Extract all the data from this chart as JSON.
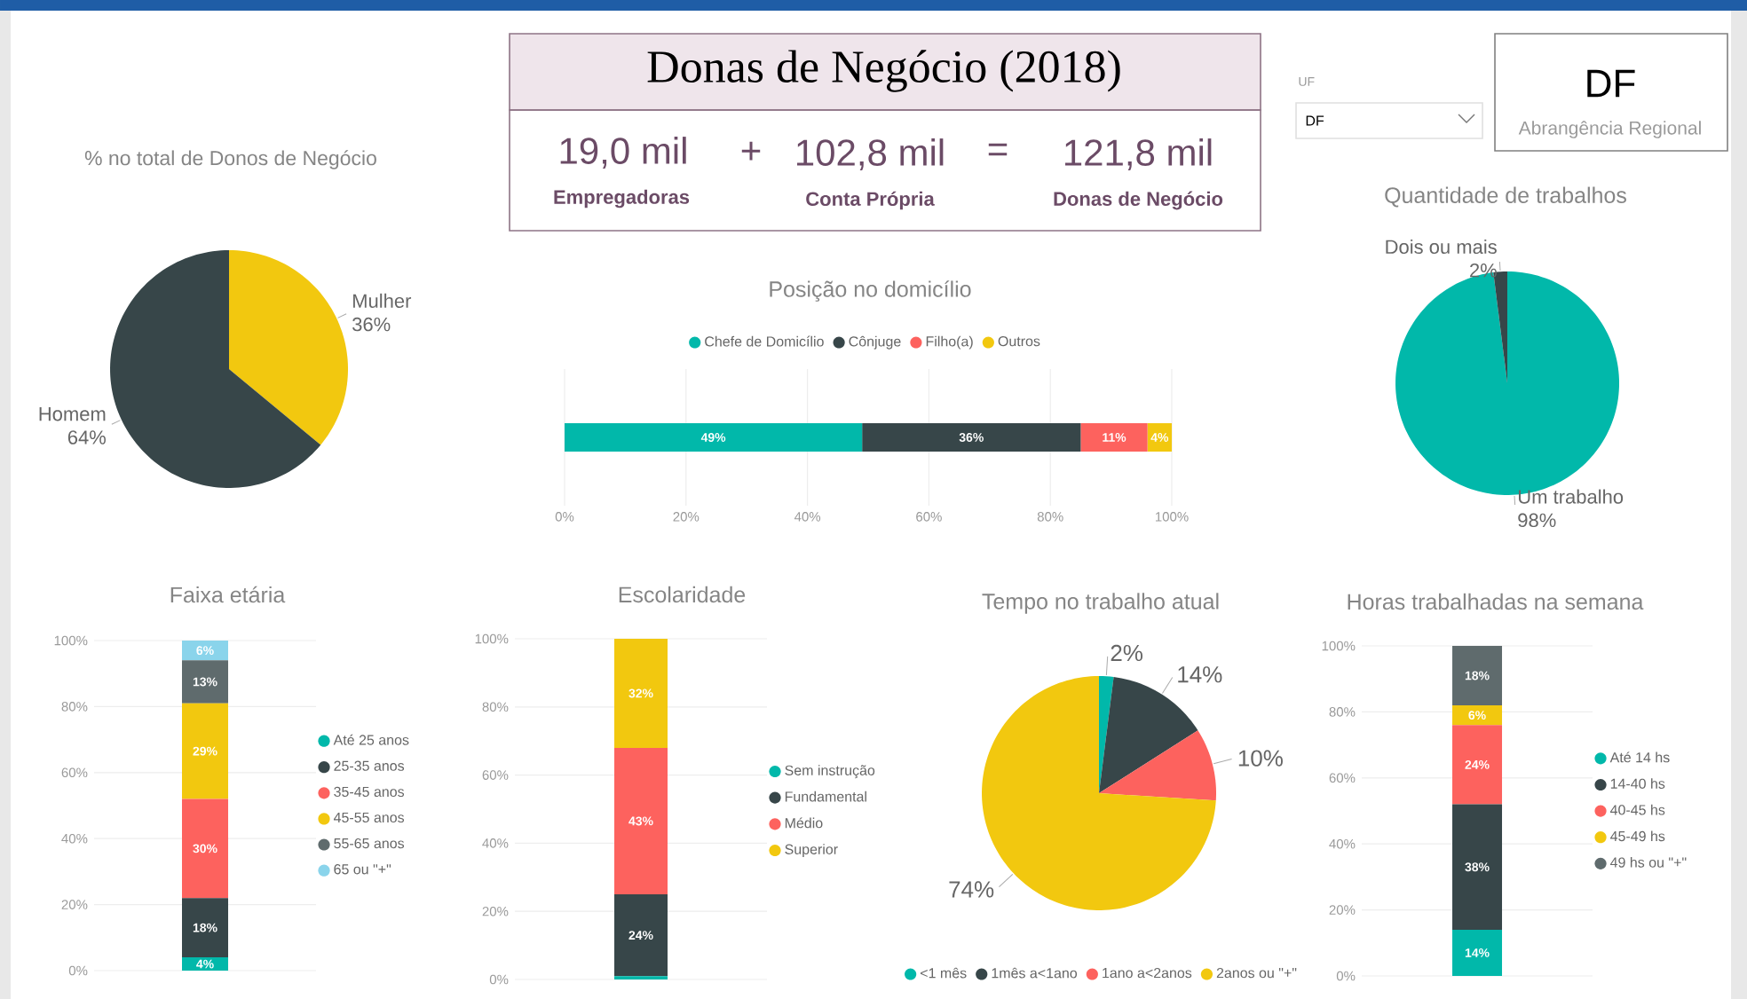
{
  "chart_data": [
    {
      "type": "pie",
      "title": "% no total de Donos de Negócio",
      "categories": [
        "Mulher",
        "Homem"
      ],
      "values": [
        36,
        64
      ],
      "colors": [
        "#f2c80f",
        "#374649"
      ],
      "value_labels": [
        "36%",
        "64%"
      ]
    },
    {
      "type": "other",
      "title": "Donas de Negócio (2018)",
      "annotations": [
        "19,0 mil",
        "+",
        "102,8 mil",
        "=",
        "121,8 mil",
        "Empregadoras",
        "Conta Própria",
        "Donas de Negócio"
      ]
    },
    {
      "type": "other",
      "title": "UF",
      "annotations": [
        "DF"
      ]
    },
    {
      "type": "other",
      "annotations": [
        "DF",
        "Abrangência Regional"
      ]
    },
    {
      "type": "bar",
      "orientation": "horizontal",
      "stacked": true,
      "title": "Posição no domicílio",
      "categories": [
        null
      ],
      "series": [
        {
          "name": "Chefe de Domicílio",
          "color": "#01b8aa",
          "values": [
            49
          ],
          "value_labels": [
            "49%"
          ]
        },
        {
          "name": "Cônjuge",
          "color": "#374649",
          "values": [
            36
          ],
          "value_labels": [
            "36%"
          ]
        },
        {
          "name": "Filho(a)",
          "color": "#fd625e",
          "values": [
            11
          ],
          "value_labels": [
            "11%"
          ]
        },
        {
          "name": "Outros",
          "color": "#f2c80f",
          "values": [
            4
          ],
          "value_labels": [
            "4%"
          ]
        }
      ],
      "xlim": [
        0,
        100
      ],
      "xticks": [
        {
          "value": 0,
          "label": "0%"
        },
        {
          "value": 20,
          "label": "20%"
        },
        {
          "value": 40,
          "label": "40%"
        },
        {
          "value": 60,
          "label": "60%"
        },
        {
          "value": 80,
          "label": "80%"
        },
        {
          "value": 100,
          "label": "100%"
        }
      ],
      "grid": "x",
      "legend": "top"
    },
    {
      "type": "pie",
      "title": "Quantidade de trabalhos",
      "categories": [
        "Um trabalho",
        "Dois ou mais"
      ],
      "values": [
        98,
        2
      ],
      "colors": [
        "#01b8aa",
        "#374649"
      ],
      "value_labels": [
        "98%",
        "2%"
      ]
    },
    {
      "type": "bar",
      "stacked": true,
      "title": "Faixa etária",
      "categories": [
        null
      ],
      "series": [
        {
          "name": "Até 25 anos",
          "color": "#01b8aa",
          "values": [
            4
          ],
          "value_labels": [
            "4%"
          ]
        },
        {
          "name": "25-35 anos",
          "color": "#374649",
          "values": [
            18
          ],
          "value_labels": [
            "18%"
          ]
        },
        {
          "name": "35-45 anos",
          "color": "#fd625e",
          "values": [
            30
          ],
          "value_labels": [
            "30%"
          ]
        },
        {
          "name": "45-55 anos",
          "color": "#f2c80f",
          "values": [
            29
          ],
          "value_labels": [
            "29%"
          ]
        },
        {
          "name": "55-65 anos",
          "color": "#5f6b6d",
          "values": [
            13
          ],
          "value_labels": [
            "13%"
          ]
        },
        {
          "name": "65 ou \"+\"",
          "color": "#8ad4eb",
          "values": [
            6
          ],
          "value_labels": [
            "6%"
          ]
        }
      ],
      "ylim": [
        0,
        100
      ],
      "yticks": [
        {
          "value": 0,
          "label": "0%"
        },
        {
          "value": 20,
          "label": "20%"
        },
        {
          "value": 40,
          "label": "40%"
        },
        {
          "value": 60,
          "label": "60%"
        },
        {
          "value": 80,
          "label": "80%"
        },
        {
          "value": 100,
          "label": "100%"
        }
      ],
      "grid": "y",
      "legend": "right"
    },
    {
      "type": "bar",
      "stacked": true,
      "title": "Escolaridade",
      "categories": [
        null
      ],
      "series": [
        {
          "name": "Sem instrução",
          "color": "#01b8aa",
          "values": [
            1
          ],
          "value_labels": [
            null
          ]
        },
        {
          "name": "Fundamental",
          "color": "#374649",
          "values": [
            24
          ],
          "value_labels": [
            "24%"
          ]
        },
        {
          "name": "Médio",
          "color": "#fd625e",
          "values": [
            43
          ],
          "value_labels": [
            "43%"
          ]
        },
        {
          "name": "Superior",
          "color": "#f2c80f",
          "values": [
            32
          ],
          "value_labels": [
            "32%"
          ]
        }
      ],
      "ylim": [
        0,
        100
      ],
      "yticks": [
        {
          "value": 0,
          "label": "0%"
        },
        {
          "value": 20,
          "label": "20%"
        },
        {
          "value": 40,
          "label": "40%"
        },
        {
          "value": 60,
          "label": "60%"
        },
        {
          "value": 80,
          "label": "80%"
        },
        {
          "value": 100,
          "label": "100%"
        }
      ],
      "grid": "y",
      "legend": "right"
    },
    {
      "type": "pie",
      "title": "Tempo no trabalho atual",
      "categories": [
        "<1 mês",
        "1mês a<1ano",
        "1ano a<2anos",
        "2anos ou \"+\""
      ],
      "values": [
        2,
        14,
        10,
        74
      ],
      "colors": [
        "#01b8aa",
        "#374649",
        "#fd625e",
        "#f2c80f"
      ],
      "value_labels": [
        "2%",
        "14%",
        "10%",
        "74%"
      ],
      "legend": "bottom"
    },
    {
      "type": "bar",
      "stacked": true,
      "title": "Horas trabalhadas na semana",
      "categories": [
        null
      ],
      "series": [
        {
          "name": "Até 14 hs",
          "color": "#01b8aa",
          "values": [
            14
          ],
          "value_labels": [
            "14%"
          ]
        },
        {
          "name": "14-40 hs",
          "color": "#374649",
          "values": [
            38
          ],
          "value_labels": [
            "38%"
          ]
        },
        {
          "name": "40-45 hs",
          "color": "#fd625e",
          "values": [
            24
          ],
          "value_labels": [
            "24%"
          ]
        },
        {
          "name": "45-49 hs",
          "color": "#f2c80f",
          "values": [
            6
          ],
          "value_labels": [
            "6%"
          ]
        },
        {
          "name": "49 hs ou \"+\"",
          "color": "#5f6b6d",
          "values": [
            18
          ],
          "value_labels": [
            "18%"
          ]
        }
      ],
      "ylim": [
        0,
        100
      ],
      "yticks": [
        {
          "value": 0,
          "label": "0%"
        },
        {
          "value": 20,
          "label": "20%"
        },
        {
          "value": 40,
          "label": "40%"
        },
        {
          "value": 60,
          "label": "60%"
        },
        {
          "value": 80,
          "label": "80%"
        },
        {
          "value": 100,
          "label": "100%"
        }
      ],
      "grid": "y",
      "legend": "right"
    }
  ]
}
